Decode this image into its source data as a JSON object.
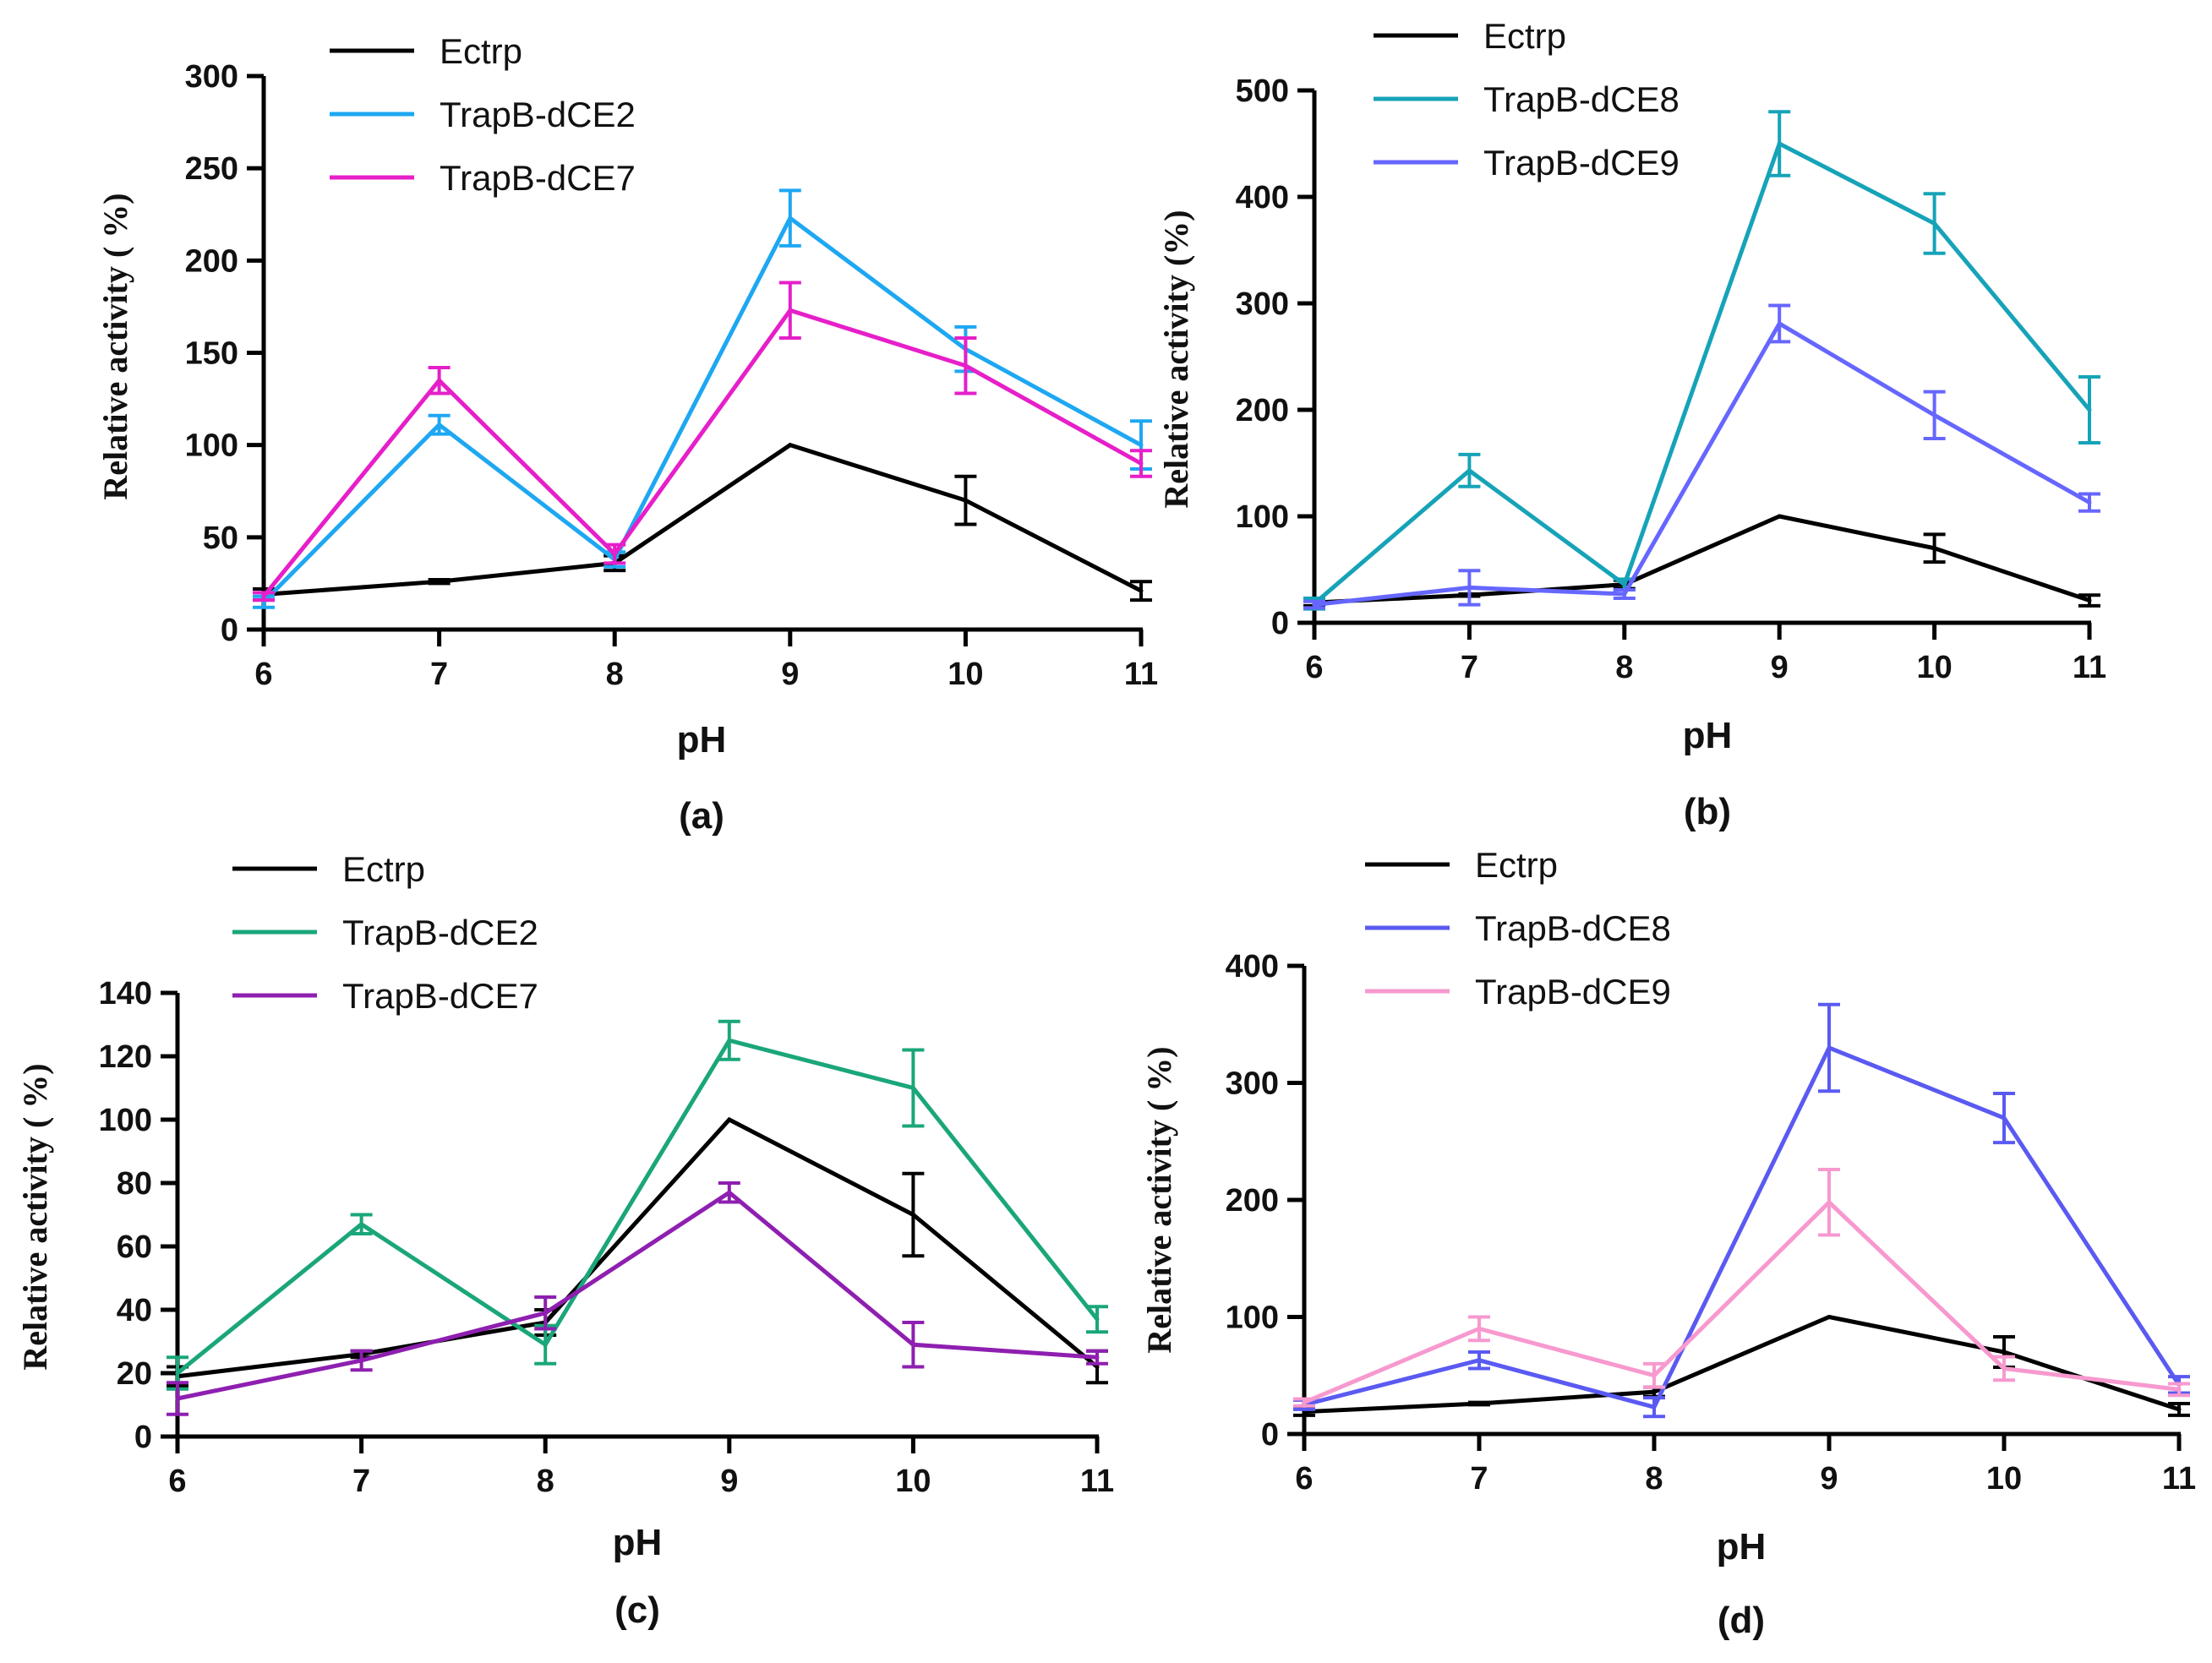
{
  "chart_data": [
    {
      "id": "a",
      "type": "line",
      "panel_label": "(a)",
      "xlabel": "pH",
      "ylabel": "Relative activity ( %)",
      "x": [
        6,
        7,
        8,
        9,
        10,
        11
      ],
      "xlim": [
        6,
        11
      ],
      "ylim": [
        0,
        300
      ],
      "yticks": [
        0,
        50,
        100,
        150,
        200,
        250,
        300
      ],
      "grid": false,
      "legend": "top-left",
      "series": [
        {
          "name": "Ectrp",
          "color": "#000000",
          "values": [
            19,
            26,
            36,
            100,
            70,
            21
          ],
          "errors": [
            3,
            1,
            4,
            0,
            13,
            5
          ]
        },
        {
          "name": "TrapB-dCE2",
          "color": "#1ea7f2",
          "values": [
            15,
            111,
            38,
            223,
            152,
            100
          ],
          "errors": [
            3,
            5,
            4,
            15,
            12,
            13
          ]
        },
        {
          "name": "TrapB-dCE7",
          "color": "#e61fc9",
          "values": [
            18,
            135,
            41,
            173,
            143,
            90
          ],
          "errors": [
            2,
            7,
            5,
            15,
            15,
            7
          ]
        }
      ]
    },
    {
      "id": "b",
      "type": "line",
      "panel_label": "(b)",
      "xlabel": "pH",
      "ylabel": "Relative activity (%)",
      "x": [
        6,
        7,
        8,
        9,
        10,
        11
      ],
      "xlim": [
        6,
        11
      ],
      "ylim": [
        0,
        500
      ],
      "yticks": [
        0,
        100,
        200,
        300,
        400,
        500
      ],
      "grid": false,
      "legend": "top-left",
      "series": [
        {
          "name": "Ectrp",
          "color": "#000000",
          "values": [
            19,
            26,
            36,
            100,
            70,
            21
          ],
          "errors": [
            3,
            1,
            4,
            0,
            13,
            5
          ]
        },
        {
          "name": "TrapB-dCE8",
          "color": "#16a3b8",
          "values": [
            18,
            143,
            36,
            450,
            375,
            200
          ],
          "errors": [
            5,
            15,
            5,
            30,
            28,
            31
          ]
        },
        {
          "name": "TrapB-dCE9",
          "color": "#6666ff",
          "values": [
            17,
            33,
            27,
            281,
            195,
            113
          ],
          "errors": [
            3,
            16,
            4,
            17,
            22,
            8
          ]
        }
      ]
    },
    {
      "id": "c",
      "type": "line",
      "panel_label": "(c)",
      "xlabel": "pH",
      "ylabel": "Relative activity ( %)",
      "x": [
        6,
        7,
        8,
        9,
        10,
        11
      ],
      "xlim": [
        6,
        11
      ],
      "ylim": [
        0,
        140
      ],
      "yticks": [
        0,
        20,
        40,
        60,
        80,
        100,
        120,
        140
      ],
      "grid": false,
      "legend": "top-left",
      "series": [
        {
          "name": "Ectrp",
          "color": "#000000",
          "values": [
            19,
            26,
            36,
            100,
            70,
            22
          ],
          "errors": [
            3,
            1,
            4,
            0,
            13,
            5
          ]
        },
        {
          "name": "TrapB-dCE2",
          "color": "#1aa67a",
          "values": [
            20,
            67,
            29,
            125,
            110,
            37
          ],
          "errors": [
            5,
            3,
            6,
            6,
            12,
            4
          ]
        },
        {
          "name": "TrapB-dCE7",
          "color": "#8e1fb0",
          "values": [
            12,
            24,
            39,
            77,
            29,
            25
          ],
          "errors": [
            5,
            3,
            5,
            3,
            7,
            2
          ]
        }
      ]
    },
    {
      "id": "d",
      "type": "line",
      "panel_label": "(d)",
      "xlabel": "pH",
      "ylabel": "Relative activity ( %)",
      "x": [
        6,
        7,
        8,
        9,
        10,
        11
      ],
      "xlim": [
        6,
        11
      ],
      "ylim": [
        0,
        400
      ],
      "yticks": [
        0,
        100,
        200,
        300,
        400
      ],
      "grid": false,
      "legend": "top-left",
      "series": [
        {
          "name": "Ectrp",
          "color": "#000000",
          "values": [
            19,
            26,
            36,
            100,
            70,
            21
          ],
          "errors": [
            3,
            1,
            4,
            0,
            13,
            5
          ]
        },
        {
          "name": "TrapB-dCE8",
          "color": "#5a5af2",
          "values": [
            25,
            63,
            23,
            330,
            270,
            42
          ],
          "errors": [
            4,
            7,
            8,
            37,
            21,
            7
          ]
        },
        {
          "name": "TrapB-dCE9",
          "color": "#f799cf",
          "values": [
            27,
            90,
            50,
            198,
            56,
            38
          ],
          "errors": [
            3,
            10,
            10,
            28,
            10,
            5
          ]
        }
      ]
    }
  ]
}
